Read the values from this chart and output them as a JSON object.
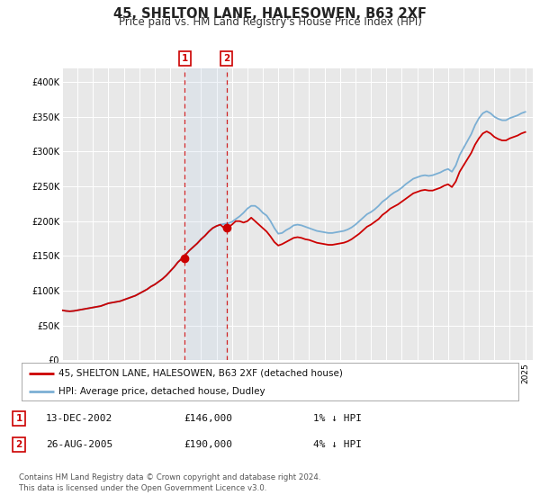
{
  "title": "45, SHELTON LANE, HALESOWEN, B63 2XF",
  "subtitle": "Price paid vs. HM Land Registry's House Price Index (HPI)",
  "background_color": "#ffffff",
  "plot_background_color": "#e8e8e8",
  "grid_color": "#ffffff",
  "title_fontsize": 10.5,
  "subtitle_fontsize": 8.5,
  "ylim": [
    0,
    420000
  ],
  "ytick_values": [
    0,
    50000,
    100000,
    150000,
    200000,
    250000,
    300000,
    350000,
    400000
  ],
  "ytick_labels": [
    "£0",
    "£50K",
    "£100K",
    "£150K",
    "£200K",
    "£250K",
    "£300K",
    "£350K",
    "£400K"
  ],
  "xlim_start": 1995.0,
  "xlim_end": 2025.5,
  "sale1_date": 2002.95,
  "sale1_price": 146000,
  "sale2_date": 2005.65,
  "sale2_price": 190000,
  "sale_color": "#cc0000",
  "hpi_color": "#7bafd4",
  "legend_label1": "45, SHELTON LANE, HALESOWEN, B63 2XF (detached house)",
  "legend_label2": "HPI: Average price, detached house, Dudley",
  "annotation1_date": "13-DEC-2002",
  "annotation1_price": "£146,000",
  "annotation1_hpi": "1% ↓ HPI",
  "annotation2_date": "26-AUG-2005",
  "annotation2_price": "£190,000",
  "annotation2_hpi": "4% ↓ HPI",
  "footer_line1": "Contains HM Land Registry data © Crown copyright and database right 2024.",
  "footer_line2": "This data is licensed under the Open Government Licence v3.0.",
  "xtick_years": [
    1995,
    1996,
    1997,
    1998,
    1999,
    2000,
    2001,
    2002,
    2003,
    2004,
    2005,
    2006,
    2007,
    2008,
    2009,
    2010,
    2011,
    2012,
    2013,
    2014,
    2015,
    2016,
    2017,
    2018,
    2019,
    2020,
    2021,
    2022,
    2023,
    2024,
    2025
  ],
  "hpi_data": [
    [
      1995.0,
      72000
    ],
    [
      1995.25,
      71000
    ],
    [
      1995.5,
      70500
    ],
    [
      1995.75,
      71000
    ],
    [
      1996.0,
      72000
    ],
    [
      1996.25,
      73000
    ],
    [
      1996.5,
      74000
    ],
    [
      1996.75,
      75000
    ],
    [
      1997.0,
      76000
    ],
    [
      1997.25,
      77000
    ],
    [
      1997.5,
      78000
    ],
    [
      1997.75,
      80000
    ],
    [
      1998.0,
      82000
    ],
    [
      1998.25,
      83000
    ],
    [
      1998.5,
      84000
    ],
    [
      1998.75,
      85000
    ],
    [
      1999.0,
      87000
    ],
    [
      1999.25,
      89000
    ],
    [
      1999.5,
      91000
    ],
    [
      1999.75,
      93000
    ],
    [
      2000.0,
      96000
    ],
    [
      2000.25,
      99000
    ],
    [
      2000.5,
      102000
    ],
    [
      2000.75,
      106000
    ],
    [
      2001.0,
      109000
    ],
    [
      2001.25,
      113000
    ],
    [
      2001.5,
      117000
    ],
    [
      2001.75,
      122000
    ],
    [
      2002.0,
      128000
    ],
    [
      2002.25,
      134000
    ],
    [
      2002.5,
      141000
    ],
    [
      2002.75,
      147000
    ],
    [
      2003.0,
      152000
    ],
    [
      2003.25,
      158000
    ],
    [
      2003.5,
      163000
    ],
    [
      2003.75,
      168000
    ],
    [
      2004.0,
      174000
    ],
    [
      2004.25,
      179000
    ],
    [
      2004.5,
      185000
    ],
    [
      2004.75,
      190000
    ],
    [
      2005.0,
      193000
    ],
    [
      2005.25,
      195000
    ],
    [
      2005.5,
      196000
    ],
    [
      2005.75,
      197000
    ],
    [
      2006.0,
      199000
    ],
    [
      2006.25,
      203000
    ],
    [
      2006.5,
      207000
    ],
    [
      2006.75,
      212000
    ],
    [
      2007.0,
      218000
    ],
    [
      2007.25,
      222000
    ],
    [
      2007.5,
      222000
    ],
    [
      2007.75,
      218000
    ],
    [
      2008.0,
      212000
    ],
    [
      2008.25,
      208000
    ],
    [
      2008.5,
      200000
    ],
    [
      2008.75,
      190000
    ],
    [
      2009.0,
      182000
    ],
    [
      2009.25,
      183000
    ],
    [
      2009.5,
      187000
    ],
    [
      2009.75,
      190000
    ],
    [
      2010.0,
      194000
    ],
    [
      2010.25,
      195000
    ],
    [
      2010.5,
      194000
    ],
    [
      2010.75,
      192000
    ],
    [
      2011.0,
      190000
    ],
    [
      2011.25,
      188000
    ],
    [
      2011.5,
      186000
    ],
    [
      2011.75,
      185000
    ],
    [
      2012.0,
      184000
    ],
    [
      2012.25,
      183000
    ],
    [
      2012.5,
      183000
    ],
    [
      2012.75,
      184000
    ],
    [
      2013.0,
      185000
    ],
    [
      2013.25,
      186000
    ],
    [
      2013.5,
      188000
    ],
    [
      2013.75,
      191000
    ],
    [
      2014.0,
      195000
    ],
    [
      2014.25,
      200000
    ],
    [
      2014.5,
      205000
    ],
    [
      2014.75,
      210000
    ],
    [
      2015.0,
      213000
    ],
    [
      2015.25,
      217000
    ],
    [
      2015.5,
      222000
    ],
    [
      2015.75,
      228000
    ],
    [
      2016.0,
      232000
    ],
    [
      2016.25,
      237000
    ],
    [
      2016.5,
      241000
    ],
    [
      2016.75,
      244000
    ],
    [
      2017.0,
      248000
    ],
    [
      2017.25,
      253000
    ],
    [
      2017.5,
      257000
    ],
    [
      2017.75,
      261000
    ],
    [
      2018.0,
      263000
    ],
    [
      2018.25,
      265000
    ],
    [
      2018.5,
      266000
    ],
    [
      2018.75,
      265000
    ],
    [
      2019.0,
      266000
    ],
    [
      2019.25,
      268000
    ],
    [
      2019.5,
      270000
    ],
    [
      2019.75,
      273000
    ],
    [
      2020.0,
      275000
    ],
    [
      2020.25,
      271000
    ],
    [
      2020.5,
      280000
    ],
    [
      2020.75,
      295000
    ],
    [
      2021.0,
      305000
    ],
    [
      2021.25,
      315000
    ],
    [
      2021.5,
      325000
    ],
    [
      2021.75,
      338000
    ],
    [
      2022.0,
      348000
    ],
    [
      2022.25,
      355000
    ],
    [
      2022.5,
      358000
    ],
    [
      2022.75,
      355000
    ],
    [
      2023.0,
      350000
    ],
    [
      2023.25,
      347000
    ],
    [
      2023.5,
      345000
    ],
    [
      2023.75,
      345000
    ],
    [
      2024.0,
      348000
    ],
    [
      2024.25,
      350000
    ],
    [
      2024.5,
      352000
    ],
    [
      2024.75,
      355000
    ],
    [
      2025.0,
      357000
    ]
  ],
  "sale_line_data": [
    [
      1995.0,
      72000
    ],
    [
      1995.25,
      71000
    ],
    [
      1995.5,
      70500
    ],
    [
      1995.75,
      71000
    ],
    [
      1996.0,
      72000
    ],
    [
      1996.25,
      73000
    ],
    [
      1996.5,
      74000
    ],
    [
      1996.75,
      75000
    ],
    [
      1997.0,
      76000
    ],
    [
      1997.25,
      77000
    ],
    [
      1997.5,
      78000
    ],
    [
      1997.75,
      80000
    ],
    [
      1998.0,
      82000
    ],
    [
      1998.25,
      83000
    ],
    [
      1998.5,
      84000
    ],
    [
      1998.75,
      85000
    ],
    [
      1999.0,
      87000
    ],
    [
      1999.25,
      89000
    ],
    [
      1999.5,
      91000
    ],
    [
      1999.75,
      93000
    ],
    [
      2000.0,
      96000
    ],
    [
      2000.25,
      99000
    ],
    [
      2000.5,
      102000
    ],
    [
      2000.75,
      106000
    ],
    [
      2001.0,
      109000
    ],
    [
      2001.25,
      113000
    ],
    [
      2001.5,
      117000
    ],
    [
      2001.75,
      122000
    ],
    [
      2002.0,
      128000
    ],
    [
      2002.25,
      134000
    ],
    [
      2002.5,
      141000
    ],
    [
      2002.75,
      146000
    ],
    [
      2002.95,
      146000
    ],
    [
      2003.0,
      152000
    ],
    [
      2003.25,
      158000
    ],
    [
      2003.5,
      163000
    ],
    [
      2003.75,
      168000
    ],
    [
      2004.0,
      174000
    ],
    [
      2004.25,
      179000
    ],
    [
      2004.5,
      185000
    ],
    [
      2004.75,
      190000
    ],
    [
      2005.0,
      193000
    ],
    [
      2005.25,
      195000
    ],
    [
      2005.5,
      190000
    ],
    [
      2005.65,
      190000
    ],
    [
      2005.75,
      191000
    ],
    [
      2006.0,
      195000
    ],
    [
      2006.25,
      200000
    ],
    [
      2006.5,
      200000
    ],
    [
      2006.75,
      198000
    ],
    [
      2007.0,
      200000
    ],
    [
      2007.25,
      205000
    ],
    [
      2007.5,
      200000
    ],
    [
      2007.75,
      195000
    ],
    [
      2008.0,
      190000
    ],
    [
      2008.25,
      185000
    ],
    [
      2008.5,
      178000
    ],
    [
      2008.75,
      170000
    ],
    [
      2009.0,
      165000
    ],
    [
      2009.25,
      167000
    ],
    [
      2009.5,
      170000
    ],
    [
      2009.75,
      173000
    ],
    [
      2010.0,
      176000
    ],
    [
      2010.25,
      177000
    ],
    [
      2010.5,
      176000
    ],
    [
      2010.75,
      174000
    ],
    [
      2011.0,
      173000
    ],
    [
      2011.25,
      171000
    ],
    [
      2011.5,
      169000
    ],
    [
      2011.75,
      168000
    ],
    [
      2012.0,
      167000
    ],
    [
      2012.25,
      166000
    ],
    [
      2012.5,
      166000
    ],
    [
      2012.75,
      167000
    ],
    [
      2013.0,
      168000
    ],
    [
      2013.25,
      169000
    ],
    [
      2013.5,
      171000
    ],
    [
      2013.75,
      174000
    ],
    [
      2014.0,
      178000
    ],
    [
      2014.25,
      182000
    ],
    [
      2014.5,
      187000
    ],
    [
      2014.75,
      192000
    ],
    [
      2015.0,
      195000
    ],
    [
      2015.25,
      199000
    ],
    [
      2015.5,
      203000
    ],
    [
      2015.75,
      209000
    ],
    [
      2016.0,
      213000
    ],
    [
      2016.25,
      218000
    ],
    [
      2016.5,
      221000
    ],
    [
      2016.75,
      224000
    ],
    [
      2017.0,
      228000
    ],
    [
      2017.25,
      232000
    ],
    [
      2017.5,
      236000
    ],
    [
      2017.75,
      240000
    ],
    [
      2018.0,
      242000
    ],
    [
      2018.25,
      244000
    ],
    [
      2018.5,
      245000
    ],
    [
      2018.75,
      244000
    ],
    [
      2019.0,
      244000
    ],
    [
      2019.25,
      246000
    ],
    [
      2019.5,
      248000
    ],
    [
      2019.75,
      251000
    ],
    [
      2020.0,
      253000
    ],
    [
      2020.25,
      249000
    ],
    [
      2020.5,
      257000
    ],
    [
      2020.75,
      271000
    ],
    [
      2021.0,
      280000
    ],
    [
      2021.25,
      289000
    ],
    [
      2021.5,
      298000
    ],
    [
      2021.75,
      310000
    ],
    [
      2022.0,
      319000
    ],
    [
      2022.25,
      326000
    ],
    [
      2022.5,
      329000
    ],
    [
      2022.75,
      326000
    ],
    [
      2023.0,
      321000
    ],
    [
      2023.25,
      318000
    ],
    [
      2023.5,
      316000
    ],
    [
      2023.75,
      316000
    ],
    [
      2024.0,
      319000
    ],
    [
      2024.25,
      321000
    ],
    [
      2024.5,
      323000
    ],
    [
      2024.75,
      326000
    ],
    [
      2025.0,
      328000
    ]
  ]
}
